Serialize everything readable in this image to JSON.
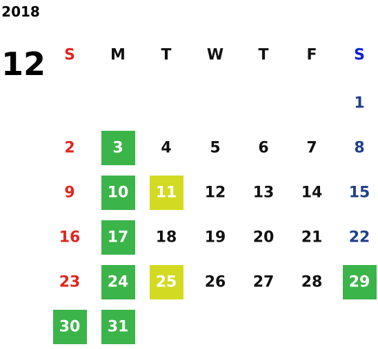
{
  "year": "2018",
  "month": "12",
  "weekdays": [
    "S",
    "M",
    "T",
    "W",
    "T",
    "F",
    "S"
  ],
  "header_colors": [
    "#e6211f",
    "#111111",
    "#111111",
    "#111111",
    "#111111",
    "#111111",
    "#0a1fe0"
  ],
  "day_colors": [
    "#e0261f",
    "#111111",
    "#111111",
    "#111111",
    "#111111",
    "#111111",
    "#203f8c"
  ],
  "weeks": [
    [
      null,
      null,
      null,
      null,
      null,
      null,
      {
        "text": "1"
      }
    ],
    [
      {
        "text": "2"
      },
      {
        "text": "3",
        "fill": "#3bb44a"
      },
      {
        "text": "4"
      },
      {
        "text": "5"
      },
      {
        "text": "6"
      },
      {
        "text": "7"
      },
      {
        "text": "8"
      }
    ],
    [
      {
        "text": "9"
      },
      {
        "text": "10",
        "fill": "#3bb44a"
      },
      {
        "text": "11",
        "fill": "#d3da22"
      },
      {
        "text": "12"
      },
      {
        "text": "13"
      },
      {
        "text": "14"
      },
      {
        "text": "15"
      }
    ],
    [
      {
        "text": "16"
      },
      {
        "text": "17",
        "fill": "#3bb44a"
      },
      {
        "text": "18"
      },
      {
        "text": "19"
      },
      {
        "text": "20"
      },
      {
        "text": "21"
      },
      {
        "text": "22"
      }
    ],
    [
      {
        "text": "23"
      },
      {
        "text": "24",
        "fill": "#3bb44a"
      },
      {
        "text": "25",
        "fill": "#d3da22"
      },
      {
        "text": "26"
      },
      {
        "text": "27"
      },
      {
        "text": "28"
      },
      {
        "text": "29",
        "fill": "#3bb44a"
      }
    ],
    [
      {
        "text": "30",
        "fill": "#3bb44a"
      },
      {
        "text": "31",
        "fill": "#3bb44a"
      },
      null,
      null,
      null,
      null,
      null
    ]
  ]
}
